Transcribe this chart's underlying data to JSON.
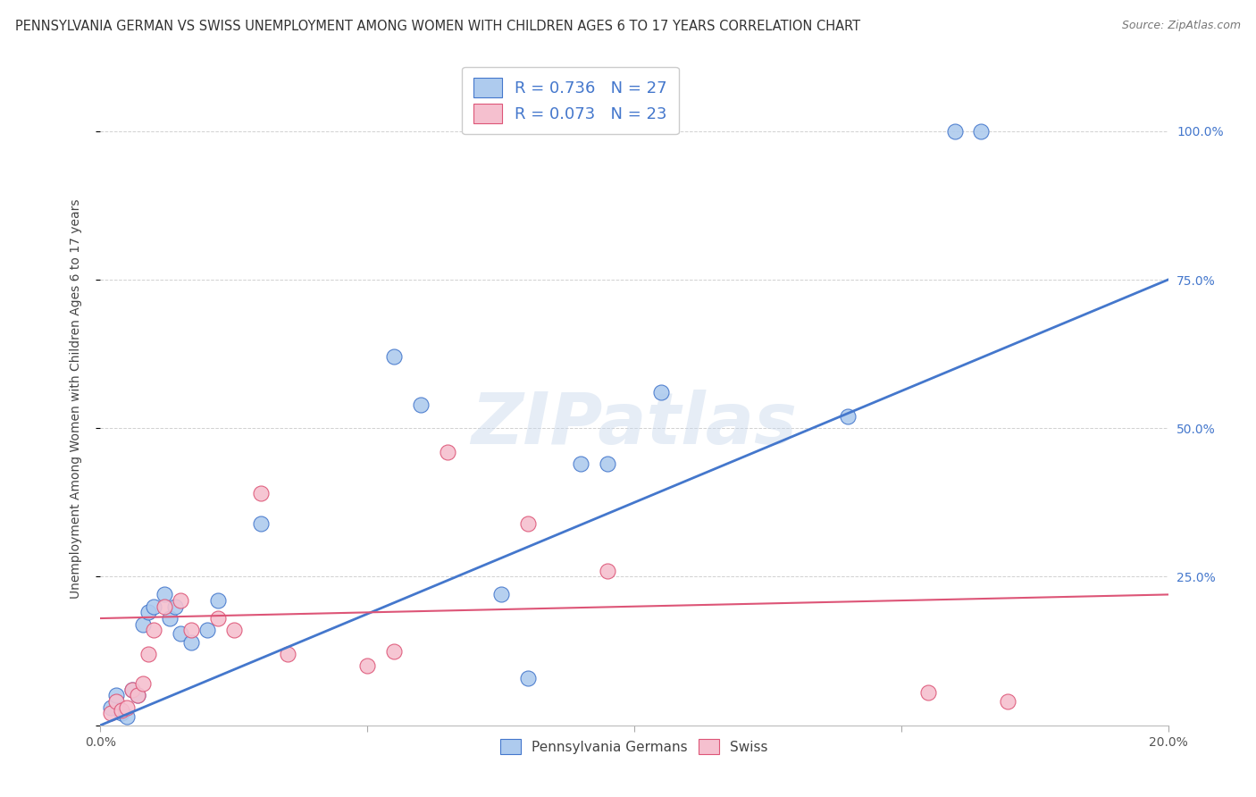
{
  "title": "PENNSYLVANIA GERMAN VS SWISS UNEMPLOYMENT AMONG WOMEN WITH CHILDREN AGES 6 TO 17 YEARS CORRELATION CHART",
  "source": "Source: ZipAtlas.com",
  "ylabel": "Unemployment Among Women with Children Ages 6 to 17 years",
  "xlim": [
    0.0,
    0.2
  ],
  "ylim": [
    0.0,
    1.1
  ],
  "R_blue": 0.736,
  "N_blue": 27,
  "R_pink": 0.073,
  "N_pink": 23,
  "blue_color": "#aecbee",
  "blue_line_color": "#4477cc",
  "pink_color": "#f5c0cf",
  "pink_line_color": "#dd5577",
  "watermark": "ZIPatlas",
  "background_color": "#ffffff",
  "blue_scatter_x": [
    0.002,
    0.003,
    0.004,
    0.005,
    0.006,
    0.007,
    0.008,
    0.009,
    0.01,
    0.012,
    0.013,
    0.014,
    0.015,
    0.017,
    0.02,
    0.022,
    0.03,
    0.055,
    0.06,
    0.075,
    0.08,
    0.09,
    0.095,
    0.105,
    0.14,
    0.16,
    0.165
  ],
  "blue_scatter_y": [
    0.03,
    0.05,
    0.02,
    0.015,
    0.06,
    0.05,
    0.17,
    0.19,
    0.2,
    0.22,
    0.18,
    0.2,
    0.155,
    0.14,
    0.16,
    0.21,
    0.34,
    0.62,
    0.54,
    0.22,
    0.08,
    0.44,
    0.44,
    0.56,
    0.52,
    1.0,
    1.0
  ],
  "pink_scatter_x": [
    0.002,
    0.003,
    0.004,
    0.005,
    0.006,
    0.007,
    0.008,
    0.009,
    0.01,
    0.012,
    0.015,
    0.017,
    0.022,
    0.025,
    0.03,
    0.035,
    0.05,
    0.055,
    0.065,
    0.08,
    0.095,
    0.155,
    0.17
  ],
  "pink_scatter_y": [
    0.02,
    0.04,
    0.025,
    0.03,
    0.06,
    0.05,
    0.07,
    0.12,
    0.16,
    0.2,
    0.21,
    0.16,
    0.18,
    0.16,
    0.39,
    0.12,
    0.1,
    0.125,
    0.46,
    0.34,
    0.26,
    0.055,
    0.04
  ],
  "title_fontsize": 10.5,
  "axis_label_fontsize": 10,
  "tick_fontsize": 10,
  "legend_fontsize": 13,
  "marker_size": 150
}
